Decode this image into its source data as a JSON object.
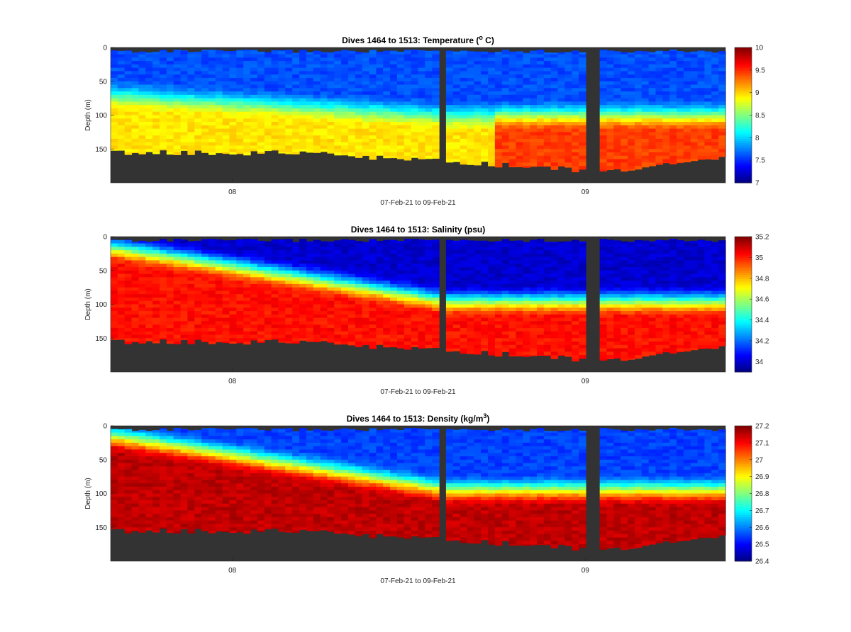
{
  "chart_data": [
    {
      "type": "heatmap",
      "title": "Dives 1464 to 1513: Temperature (",
      "title_sup": "o",
      "title_tail": " C)",
      "ylabel": "Depth (m)",
      "xlabel": "07-Feb-21 to 09-Feb-21",
      "x_ticks": [
        "08",
        "09"
      ],
      "y_ticks": [
        "0",
        "50",
        "100",
        "150"
      ],
      "y_reversed": true,
      "colorbar": {
        "min": 7,
        "max": 10,
        "ticks": [
          "7",
          "7.5",
          "8",
          "8.5",
          "9",
          "9.5",
          "10"
        ],
        "colormap": "jet"
      },
      "profile": {
        "surface_value": 7.6,
        "deep_value": 8.95,
        "late_deep_value": 9.45,
        "transition_depth_early": 70,
        "transition_depth_late": 100
      }
    },
    {
      "type": "heatmap",
      "title": "Dives 1464 to 1513: Salinity (psu)",
      "ylabel": "Depth (m)",
      "xlabel": "07-Feb-21 to 09-Feb-21",
      "x_ticks": [
        "08",
        "09"
      ],
      "y_ticks": [
        "0",
        "50",
        "100",
        "150"
      ],
      "y_reversed": true,
      "colorbar": {
        "min": 33.9,
        "max": 35.2,
        "ticks": [
          "34",
          "34.2",
          "34.4",
          "34.6",
          "34.8",
          "35",
          "35.2"
        ],
        "colormap": "jet"
      },
      "profile": {
        "surface_value": 34.0,
        "deep_value": 35.02,
        "transition_depth_early": 15,
        "transition_depth_late": 95
      }
    },
    {
      "type": "heatmap",
      "title": "Dives 1464 to 1513: Density (kg/m",
      "title_sup": "3",
      "title_tail": ")",
      "ylabel": "Depth (m)",
      "xlabel": "07-Feb-21 to 09-Feb-21",
      "x_ticks": [
        "08",
        "09"
      ],
      "y_ticks": [
        "0",
        "50",
        "100",
        "150"
      ],
      "y_reversed": true,
      "colorbar": {
        "min": 26.4,
        "max": 27.2,
        "ticks": [
          "26.4",
          "26.5",
          "26.6",
          "26.7",
          "26.8",
          "26.9",
          "27",
          "27.1",
          "27.2"
        ],
        "colormap": "jet"
      },
      "profile": {
        "surface_value": 26.55,
        "deep_value": 27.15,
        "transition_depth_early": 15,
        "transition_depth_late": 95
      }
    }
  ]
}
